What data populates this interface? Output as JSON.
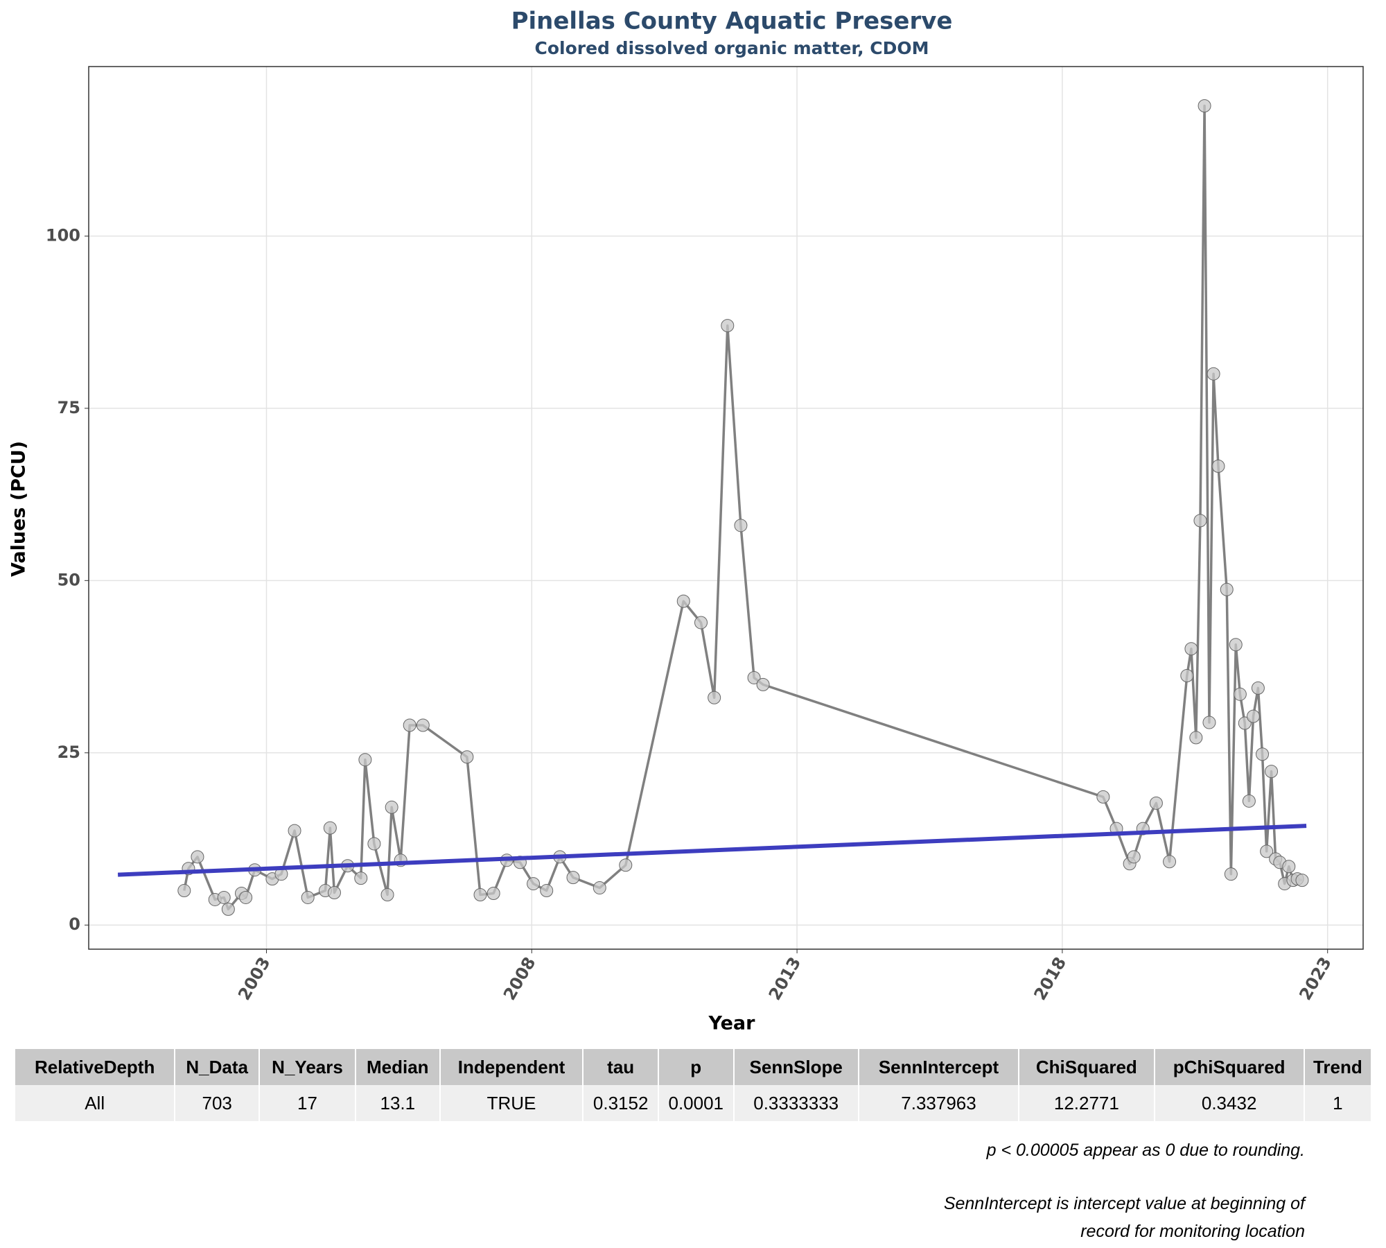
{
  "chart_data": {
    "type": "line",
    "title": "Pinellas County Aquatic Preserve",
    "subtitle": "Colored dissolved organic matter, CDOM",
    "x_label": "Year",
    "y_label": "Values (PCU)",
    "xlim": [
      1999.65,
      2023.67
    ],
    "ylim": [
      -3.5,
      124.6
    ],
    "xticks": [
      2003,
      2008,
      2013,
      2018,
      2023
    ],
    "yticks": [
      0,
      25,
      50,
      75,
      100
    ],
    "grid": true,
    "series": [
      {
        "color": "#808080",
        "marker": true,
        "x": [
          2001.45,
          2001.53,
          2001.7,
          2002.03,
          2002.2,
          2002.28,
          2002.53,
          2002.61,
          2002.78,
          2003.11,
          2003.28,
          2003.53,
          2003.78,
          2004.11,
          2004.2,
          2004.28,
          2004.53,
          2004.78,
          2004.86,
          2005.03,
          2005.28,
          2005.36,
          2005.53,
          2005.7,
          2005.95,
          2006.78,
          2007.03,
          2007.28,
          2007.53,
          2007.78,
          2008.03,
          2008.28,
          2008.53,
          2008.78,
          2009.28,
          2009.77,
          2010.86,
          2011.19,
          2011.44,
          2011.69,
          2011.94,
          2012.19,
          2012.36,
          2018.77,
          2019.02,
          2019.27,
          2019.35,
          2019.52,
          2019.77,
          2020.02,
          2020.35,
          2020.43,
          2020.52,
          2020.6,
          2020.68,
          2020.77,
          2020.85,
          2020.94,
          2021.1,
          2021.18,
          2021.27,
          2021.35,
          2021.44,
          2021.52,
          2021.6,
          2021.69,
          2021.77,
          2021.85,
          2021.94,
          2022.02,
          2022.1,
          2022.19,
          2022.27,
          2022.35,
          2022.43,
          2022.52
        ],
        "values": [
          5.0,
          8.2,
          9.9,
          3.7,
          4.0,
          2.3,
          4.6,
          4.0,
          8.0,
          6.7,
          7.4,
          13.7,
          4.0,
          5.0,
          14.1,
          4.7,
          8.6,
          6.8,
          24.0,
          11.8,
          4.4,
          17.1,
          9.4,
          29.0,
          29.0,
          24.4,
          4.4,
          4.6,
          9.4,
          9.1,
          6.0,
          5.0,
          9.9,
          6.9,
          5.4,
          8.7,
          47.0,
          43.9,
          33.0,
          87.0,
          58.0,
          35.9,
          34.9,
          18.6,
          14.0,
          8.9,
          9.9,
          14.0,
          17.7,
          9.2,
          36.2,
          40.1,
          27.2,
          58.7,
          118.9,
          29.4,
          80.0,
          66.6,
          48.7,
          7.4,
          40.7,
          33.5,
          29.3,
          18.0,
          30.3,
          34.4,
          24.8,
          10.7,
          22.3,
          9.6,
          9.1,
          6.0,
          8.5,
          6.5,
          6.7,
          6.5
        ]
      },
      {
        "color": "#3d3dbf",
        "marker": false,
        "x": [
          2000.2,
          2022.6
        ],
        "values": [
          7.3,
          14.4
        ]
      }
    ]
  },
  "table": {
    "columns": [
      "RelativeDepth",
      "N_Data",
      "N_Years",
      "Median",
      "Independent",
      "tau",
      "p",
      "SennSlope",
      "SennIntercept",
      "ChiSquared",
      "pChiSquared",
      "Trend"
    ],
    "rows": [
      [
        "All",
        "703",
        "17",
        "13.1",
        "TRUE",
        "0.3152",
        "0.0001",
        "0.3333333",
        "7.337963",
        "12.2771",
        "0.3432",
        "1"
      ]
    ]
  },
  "notes": [
    "p < 0.00005 appear as 0 due to rounding.",
    "SennIntercept is intercept value at beginning of",
    "record for monitoring location"
  ]
}
